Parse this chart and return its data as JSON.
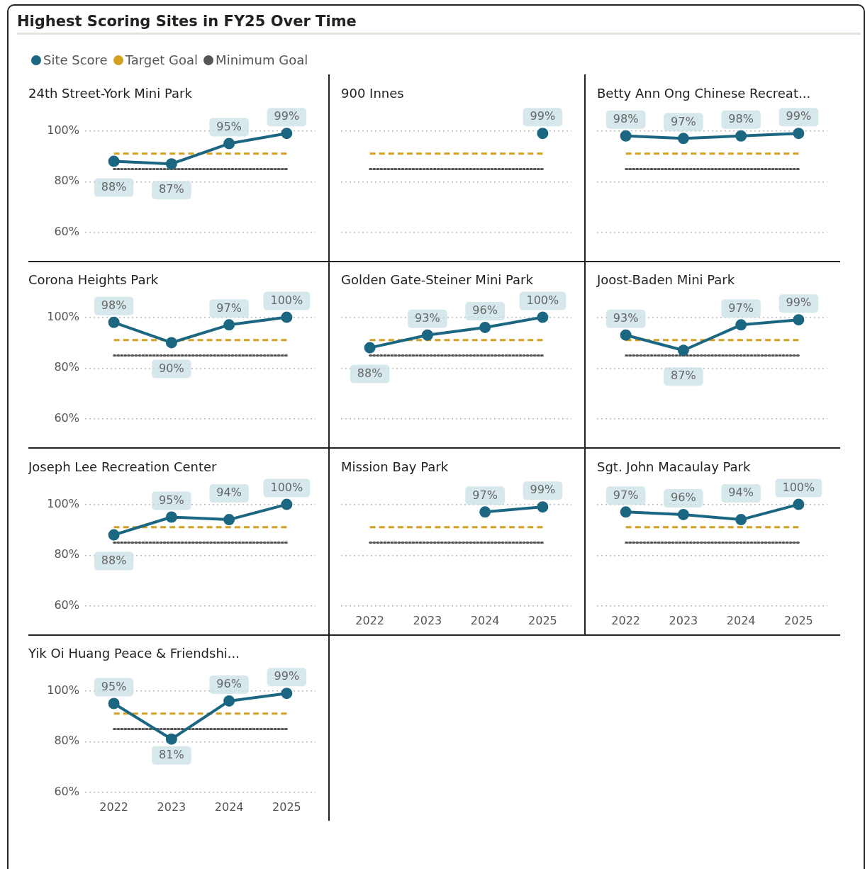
{
  "chart_data": [
    {
      "type": "line",
      "title": "24th Street-York Mini Park",
      "annotations": [
        "Highest Scoring Sites in FY25 Over Time"
      ],
      "legend": "top left",
      "grid": "y",
      "tick_labels": "y",
      "categories": [
        "2022",
        "2023",
        "2024",
        "2025"
      ],
      "ylim": [
        60,
        100
      ],
      "yticks": [
        {
          "value": 60,
          "label": "60%"
        },
        {
          "value": 80,
          "label": "80%"
        },
        {
          "value": 100,
          "label": "100%"
        }
      ],
      "series": [
        {
          "name": "Site Score",
          "color": "#1b6680",
          "marker": "circle",
          "line_style": "solid",
          "values": [
            88,
            87,
            95,
            99
          ],
          "value_labels": [
            "88%",
            "87%",
            "95%",
            "99%"
          ]
        },
        {
          "name": "Target Goal",
          "color": "#d4a021",
          "marker": "none",
          "line_style": "dashed",
          "values": [
            91,
            91,
            91,
            91
          ]
        },
        {
          "name": "Minimum Goal",
          "color": "#555555",
          "marker": "none",
          "line_style": "dotted",
          "values": [
            85,
            85,
            85,
            85
          ]
        }
      ]
    },
    {
      "type": "line",
      "title": "900 Innes",
      "grid": "y",
      "tick_labels": false,
      "categories": [
        "2022",
        "2023",
        "2024",
        "2025"
      ],
      "ylim": [
        60,
        100
      ],
      "yticks": [
        60,
        80,
        100
      ],
      "series": [
        {
          "color": "#1b6680",
          "marker": "circle",
          "line_style": "solid",
          "values": [
            null,
            null,
            null,
            99
          ],
          "value_labels": [
            null,
            null,
            null,
            "99%"
          ]
        },
        {
          "color": "#d4a021",
          "marker": "none",
          "line_style": "dashed",
          "values": [
            91,
            91,
            91,
            91
          ]
        },
        {
          "color": "#555555",
          "marker": "none",
          "line_style": "dotted",
          "values": [
            85,
            85,
            85,
            85
          ]
        }
      ]
    },
    {
      "type": "line",
      "title": "Betty Ann Ong Chinese Recreat...",
      "grid": "y",
      "tick_labels": false,
      "categories": [
        "2022",
        "2023",
        "2024",
        "2025"
      ],
      "ylim": [
        60,
        100
      ],
      "yticks": [
        60,
        80,
        100
      ],
      "series": [
        {
          "color": "#1b6680",
          "marker": "circle",
          "line_style": "solid",
          "values": [
            98,
            97,
            98,
            99
          ],
          "value_labels": [
            "98%",
            "97%",
            "98%",
            "99%"
          ]
        },
        {
          "color": "#d4a021",
          "marker": "none",
          "line_style": "dashed",
          "values": [
            91,
            91,
            91,
            91
          ]
        },
        {
          "color": "#555555",
          "marker": "none",
          "line_style": "dotted",
          "values": [
            85,
            85,
            85,
            85
          ]
        }
      ]
    },
    {
      "type": "line",
      "title": "Corona Heights Park",
      "grid": "y",
      "tick_labels": "y",
      "categories": [
        "2022",
        "2023",
        "2024",
        "2025"
      ],
      "ylim": [
        60,
        100
      ],
      "yticks": [
        {
          "value": 60,
          "label": "60%"
        },
        {
          "value": 80,
          "label": "80%"
        },
        {
          "value": 100,
          "label": "100%"
        }
      ],
      "series": [
        {
          "color": "#1b6680",
          "marker": "circle",
          "line_style": "solid",
          "values": [
            98,
            90,
            97,
            100
          ],
          "value_labels": [
            "98%",
            "90%",
            "97%",
            "100%"
          ]
        },
        {
          "color": "#d4a021",
          "marker": "none",
          "line_style": "dashed",
          "values": [
            91,
            91,
            91,
            91
          ]
        },
        {
          "color": "#555555",
          "marker": "none",
          "line_style": "dotted",
          "values": [
            85,
            85,
            85,
            85
          ]
        }
      ]
    },
    {
      "type": "line",
      "title": "Golden Gate-Steiner Mini Park",
      "grid": "y",
      "tick_labels": false,
      "categories": [
        "2022",
        "2023",
        "2024",
        "2025"
      ],
      "ylim": [
        60,
        100
      ],
      "yticks": [
        60,
        80,
        100
      ],
      "series": [
        {
          "color": "#1b6680",
          "marker": "circle",
          "line_style": "solid",
          "values": [
            88,
            93,
            96,
            100
          ],
          "value_labels": [
            "88%",
            "93%",
            "96%",
            "100%"
          ]
        },
        {
          "color": "#d4a021",
          "marker": "none",
          "line_style": "dashed",
          "values": [
            91,
            91,
            91,
            91
          ]
        },
        {
          "color": "#555555",
          "marker": "none",
          "line_style": "dotted",
          "values": [
            85,
            85,
            85,
            85
          ]
        }
      ]
    },
    {
      "type": "line",
      "title": "Joost-Baden Mini Park",
      "grid": "y",
      "tick_labels": false,
      "categories": [
        "2022",
        "2023",
        "2024",
        "2025"
      ],
      "ylim": [
        60,
        100
      ],
      "yticks": [
        60,
        80,
        100
      ],
      "series": [
        {
          "color": "#1b6680",
          "marker": "circle",
          "line_style": "solid",
          "values": [
            93,
            87,
            97,
            99
          ],
          "value_labels": [
            "93%",
            "87%",
            "97%",
            "99%"
          ]
        },
        {
          "color": "#d4a021",
          "marker": "none",
          "line_style": "dashed",
          "values": [
            91,
            91,
            91,
            91
          ]
        },
        {
          "color": "#555555",
          "marker": "none",
          "line_style": "dotted",
          "values": [
            85,
            85,
            85,
            85
          ]
        }
      ]
    },
    {
      "type": "line",
      "title": "Joseph Lee Recreation Center",
      "grid": "y",
      "tick_labels": "y",
      "categories": [
        "2022",
        "2023",
        "2024",
        "2025"
      ],
      "ylim": [
        60,
        100
      ],
      "yticks": [
        {
          "value": 60,
          "label": "60%"
        },
        {
          "value": 80,
          "label": "80%"
        },
        {
          "value": 100,
          "label": "100%"
        }
      ],
      "series": [
        {
          "color": "#1b6680",
          "marker": "circle",
          "line_style": "solid",
          "values": [
            88,
            95,
            94,
            100
          ],
          "value_labels": [
            "88%",
            "95%",
            "94%",
            "100%"
          ]
        },
        {
          "color": "#d4a021",
          "marker": "none",
          "line_style": "dashed",
          "values": [
            91,
            91,
            91,
            91
          ]
        },
        {
          "color": "#555555",
          "marker": "none",
          "line_style": "dotted",
          "values": [
            85,
            85,
            85,
            85
          ]
        }
      ]
    },
    {
      "type": "line",
      "title": "Mission Bay Park",
      "grid": "y",
      "tick_labels": "x",
      "categories": [
        "2022",
        "2023",
        "2024",
        "2025"
      ],
      "ylim": [
        60,
        100
      ],
      "yticks": [
        60,
        80,
        100
      ],
      "series": [
        {
          "color": "#1b6680",
          "marker": "circle",
          "line_style": "solid",
          "values": [
            null,
            null,
            97,
            99
          ],
          "value_labels": [
            null,
            null,
            "97%",
            "99%"
          ]
        },
        {
          "color": "#d4a021",
          "marker": "none",
          "line_style": "dashed",
          "values": [
            91,
            91,
            91,
            91
          ]
        },
        {
          "color": "#555555",
          "marker": "none",
          "line_style": "dotted",
          "values": [
            85,
            85,
            85,
            85
          ]
        }
      ]
    },
    {
      "type": "line",
      "title": "Sgt. John Macaulay Park",
      "grid": "y",
      "tick_labels": "x",
      "categories": [
        "2022",
        "2023",
        "2024",
        "2025"
      ],
      "ylim": [
        60,
        100
      ],
      "yticks": [
        60,
        80,
        100
      ],
      "series": [
        {
          "color": "#1b6680",
          "marker": "circle",
          "line_style": "solid",
          "values": [
            97,
            96,
            94,
            100
          ],
          "value_labels": [
            "97%",
            "96%",
            "94%",
            "100%"
          ]
        },
        {
          "color": "#d4a021",
          "marker": "none",
          "line_style": "dashed",
          "values": [
            91,
            91,
            91,
            91
          ]
        },
        {
          "color": "#555555",
          "marker": "none",
          "line_style": "dotted",
          "values": [
            85,
            85,
            85,
            85
          ]
        }
      ]
    },
    {
      "type": "line",
      "title": "Yik Oi Huang Peace & Friendshi...",
      "grid": "y",
      "categories": [
        "2022",
        "2023",
        "2024",
        "2025"
      ],
      "ylim": [
        60,
        100
      ],
      "yticks": [
        {
          "value": 60,
          "label": "60%"
        },
        {
          "value": 80,
          "label": "80%"
        },
        {
          "value": 100,
          "label": "100%"
        }
      ],
      "series": [
        {
          "color": "#1b6680",
          "marker": "circle",
          "line_style": "solid",
          "values": [
            95,
            81,
            96,
            99
          ],
          "value_labels": [
            "95%",
            "81%",
            "96%",
            "99%"
          ]
        },
        {
          "color": "#d4a021",
          "marker": "none",
          "line_style": "dashed",
          "values": [
            91,
            91,
            91,
            91
          ]
        },
        {
          "color": "#555555",
          "marker": "none",
          "line_style": "dotted",
          "values": [
            85,
            85,
            85,
            85
          ]
        }
      ]
    }
  ]
}
